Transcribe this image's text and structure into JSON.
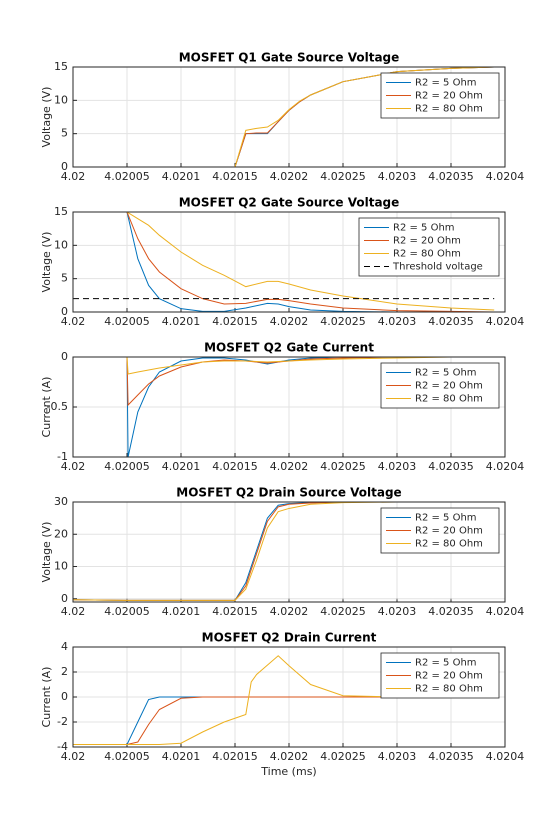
{
  "chart_data": [
    {
      "type": "line",
      "title": "MOSFET Q1 Gate Source Voltage",
      "ylabel": "Voltage (V)",
      "legend": "northeast",
      "grid": true,
      "x": [
        4.02,
        4.02005,
        4.02006,
        4.02007,
        4.02008,
        4.0201,
        4.02012,
        4.02014,
        4.02015,
        4.02016,
        4.02017,
        4.02018,
        4.02019,
        4.0202,
        4.02021,
        4.02022,
        4.02025,
        4.0203,
        4.02035,
        4.02039
      ],
      "xlim": [
        4.02,
        4.0204
      ],
      "xticks": [
        4.02,
        4.02005,
        4.0201,
        4.02015,
        4.0202,
        4.02025,
        4.0203,
        4.02035,
        4.0204
      ],
      "ylim": [
        0,
        15
      ],
      "yticks": [
        0,
        5,
        10,
        15
      ],
      "series": [
        {
          "name": "R2 = 5 Ohm",
          "color": "#0072bd",
          "values": [
            0,
            0,
            0,
            0,
            0,
            0,
            0,
            0,
            0,
            5,
            5,
            5,
            6.8,
            8.5,
            9.8,
            10.8,
            12.8,
            14.3,
            14.8,
            15
          ]
        },
        {
          "name": "R2 = 20 Ohm",
          "color": "#d95319",
          "values": [
            0,
            0,
            0,
            0,
            0,
            0,
            0,
            0,
            0,
            5,
            5.1,
            5.1,
            6.8,
            8.5,
            9.8,
            10.8,
            12.8,
            14.3,
            14.8,
            15
          ]
        },
        {
          "name": "R2 = 80 Ohm",
          "color": "#edb120",
          "values": [
            0,
            0,
            0,
            0,
            0,
            0,
            0,
            0,
            0,
            5.5,
            5.8,
            6,
            7,
            8.6,
            9.9,
            10.8,
            12.8,
            14.3,
            14.8,
            15
          ]
        }
      ]
    },
    {
      "type": "line",
      "title": "MOSFET Q2 Gate Source Voltage",
      "ylabel": "Voltage (V)",
      "legend": "northeast",
      "grid": true,
      "x": [
        4.02,
        4.02005,
        4.02006,
        4.02007,
        4.02008,
        4.0201,
        4.02012,
        4.02014,
        4.02016,
        4.02018,
        4.02019,
        4.0202,
        4.02022,
        4.02025,
        4.0203,
        4.02035,
        4.02039
      ],
      "xlim": [
        4.02,
        4.0204
      ],
      "xticks": [
        4.02,
        4.02005,
        4.0201,
        4.02015,
        4.0202,
        4.02025,
        4.0203,
        4.02035,
        4.0204
      ],
      "ylim": [
        0,
        15
      ],
      "yticks": [
        0,
        5,
        10,
        15
      ],
      "series": [
        {
          "name": "R2 = 5 Ohm",
          "color": "#0072bd",
          "values": [
            15,
            15,
            8,
            4,
            2,
            0.5,
            0.1,
            0.1,
            0.6,
            1.3,
            1.2,
            0.8,
            0.3,
            0.1,
            0,
            0,
            0
          ]
        },
        {
          "name": "R2 = 20 Ohm",
          "color": "#d95319",
          "values": [
            15,
            15,
            11,
            8,
            6,
            3.5,
            2,
            1.2,
            1.3,
            1.9,
            1.9,
            1.7,
            1.2,
            0.6,
            0.2,
            0.1,
            0
          ]
        },
        {
          "name": "R2 = 80 Ohm",
          "color": "#edb120",
          "values": [
            15,
            15,
            14,
            13,
            11.5,
            9,
            7,
            5.5,
            3.8,
            4.6,
            4.6,
            4.2,
            3.3,
            2.4,
            1.2,
            0.6,
            0.3
          ]
        },
        {
          "name": "Threshold voltage",
          "color": "#000000",
          "dashed": true,
          "values": [
            2,
            2,
            2,
            2,
            2,
            2,
            2,
            2,
            2,
            2,
            2,
            2,
            2,
            2,
            2,
            2,
            2
          ]
        }
      ]
    },
    {
      "type": "line",
      "title": "MOSFET Q2 Gate Current",
      "ylabel": "Current (A)",
      "legend": "northeast",
      "grid": true,
      "x": [
        4.02,
        4.02005,
        4.020051,
        4.02006,
        4.02007,
        4.02008,
        4.0201,
        4.02012,
        4.02014,
        4.02016,
        4.02018,
        4.0202,
        4.02022,
        4.02025,
        4.0203,
        4.02035,
        4.02039
      ],
      "xlim": [
        4.02,
        4.0204
      ],
      "xticks": [
        4.02,
        4.02005,
        4.0201,
        4.02015,
        4.0202,
        4.02025,
        4.0203,
        4.02035,
        4.0204
      ],
      "ylim": [
        -1,
        0
      ],
      "yticks": [
        -1,
        -0.5,
        0
      ],
      "series": [
        {
          "name": "R2 = 5 Ohm",
          "color": "#0072bd",
          "values": [
            0,
            0,
            -1,
            -0.55,
            -0.3,
            -0.15,
            -0.04,
            -0.01,
            -0.01,
            -0.03,
            -0.07,
            -0.03,
            -0.01,
            0,
            0,
            0,
            0
          ]
        },
        {
          "name": "R2 = 20 Ohm",
          "color": "#d95319",
          "values": [
            0,
            0,
            -0.48,
            -0.38,
            -0.27,
            -0.19,
            -0.1,
            -0.05,
            -0.03,
            -0.04,
            -0.06,
            -0.04,
            -0.02,
            -0.01,
            0,
            0,
            0
          ]
        },
        {
          "name": "R2 = 80 Ohm",
          "color": "#edb120",
          "values": [
            0,
            0,
            -0.17,
            -0.15,
            -0.13,
            -0.11,
            -0.08,
            -0.05,
            -0.04,
            -0.04,
            -0.05,
            -0.04,
            -0.03,
            -0.02,
            -0.01,
            0,
            0
          ]
        }
      ]
    },
    {
      "type": "line",
      "title": "MOSFET Q2 Drain Source Voltage",
      "ylabel": "Voltage (V)",
      "legend": "northeast",
      "grid": true,
      "x": [
        4.02,
        4.02005,
        4.0201,
        4.02015,
        4.02016,
        4.02017,
        4.02018,
        4.02019,
        4.0202,
        4.02022,
        4.02025,
        4.0203,
        4.02039
      ],
      "xlim": [
        4.02,
        4.0204
      ],
      "xticks": [
        4.02,
        4.02005,
        4.0201,
        4.02015,
        4.0202,
        4.02025,
        4.0203,
        4.02035,
        4.0204
      ],
      "ylim": [
        -1,
        30
      ],
      "yticks": [
        0,
        10,
        20,
        30
      ],
      "series": [
        {
          "name": "R2 = 5 Ohm",
          "color": "#0072bd",
          "values": [
            -0.3,
            -0.5,
            -0.5,
            -0.5,
            5,
            15,
            25,
            29,
            29.5,
            29.8,
            30,
            30,
            30
          ]
        },
        {
          "name": "R2 = 20 Ohm",
          "color": "#d95319",
          "values": [
            -0.3,
            -0.5,
            -0.5,
            -0.5,
            4,
            14,
            24,
            28.5,
            29.3,
            29.7,
            30,
            30,
            30
          ]
        },
        {
          "name": "R2 = 80 Ohm",
          "color": "#edb120",
          "values": [
            -0.3,
            -0.5,
            -0.5,
            -0.5,
            3,
            12,
            22,
            27,
            28,
            29.3,
            29.8,
            30,
            30
          ]
        }
      ]
    },
    {
      "type": "line",
      "title": "MOSFET Q2 Drain Current",
      "ylabel": "Current (A)",
      "xlabel": "Time (ms)",
      "legend": "northeast",
      "grid": true,
      "x": [
        4.02,
        4.02005,
        4.02006,
        4.02007,
        4.02008,
        4.0201,
        4.02012,
        4.02014,
        4.02016,
        4.020165,
        4.02017,
        4.02019,
        4.0202,
        4.02022,
        4.02025,
        4.0203,
        4.02039
      ],
      "xlim": [
        4.02,
        4.0204
      ],
      "xticks": [
        4.02,
        4.02005,
        4.0201,
        4.02015,
        4.0202,
        4.02025,
        4.0203,
        4.02035,
        4.0204
      ],
      "ylim": [
        -4,
        4
      ],
      "yticks": [
        -4,
        -2,
        0,
        2,
        4
      ],
      "series": [
        {
          "name": "R2 = 5 Ohm",
          "color": "#0072bd",
          "values": [
            -3.8,
            -3.8,
            -2,
            -0.2,
            0,
            0,
            0,
            0,
            0,
            0,
            0,
            0,
            0,
            0,
            0,
            0,
            0
          ]
        },
        {
          "name": "R2 = 20 Ohm",
          "color": "#d95319",
          "values": [
            -3.8,
            -3.8,
            -3.6,
            -2.2,
            -1,
            -0.1,
            0,
            0,
            0,
            0,
            0,
            0,
            0,
            0,
            0,
            0,
            0
          ]
        },
        {
          "name": "R2 = 80 Ohm",
          "color": "#edb120",
          "values": [
            -3.8,
            -3.8,
            -3.8,
            -3.8,
            -3.8,
            -3.7,
            -2.8,
            -2,
            -1.4,
            1.2,
            1.8,
            3.3,
            2.5,
            1,
            0.1,
            0,
            0
          ]
        }
      ]
    }
  ]
}
